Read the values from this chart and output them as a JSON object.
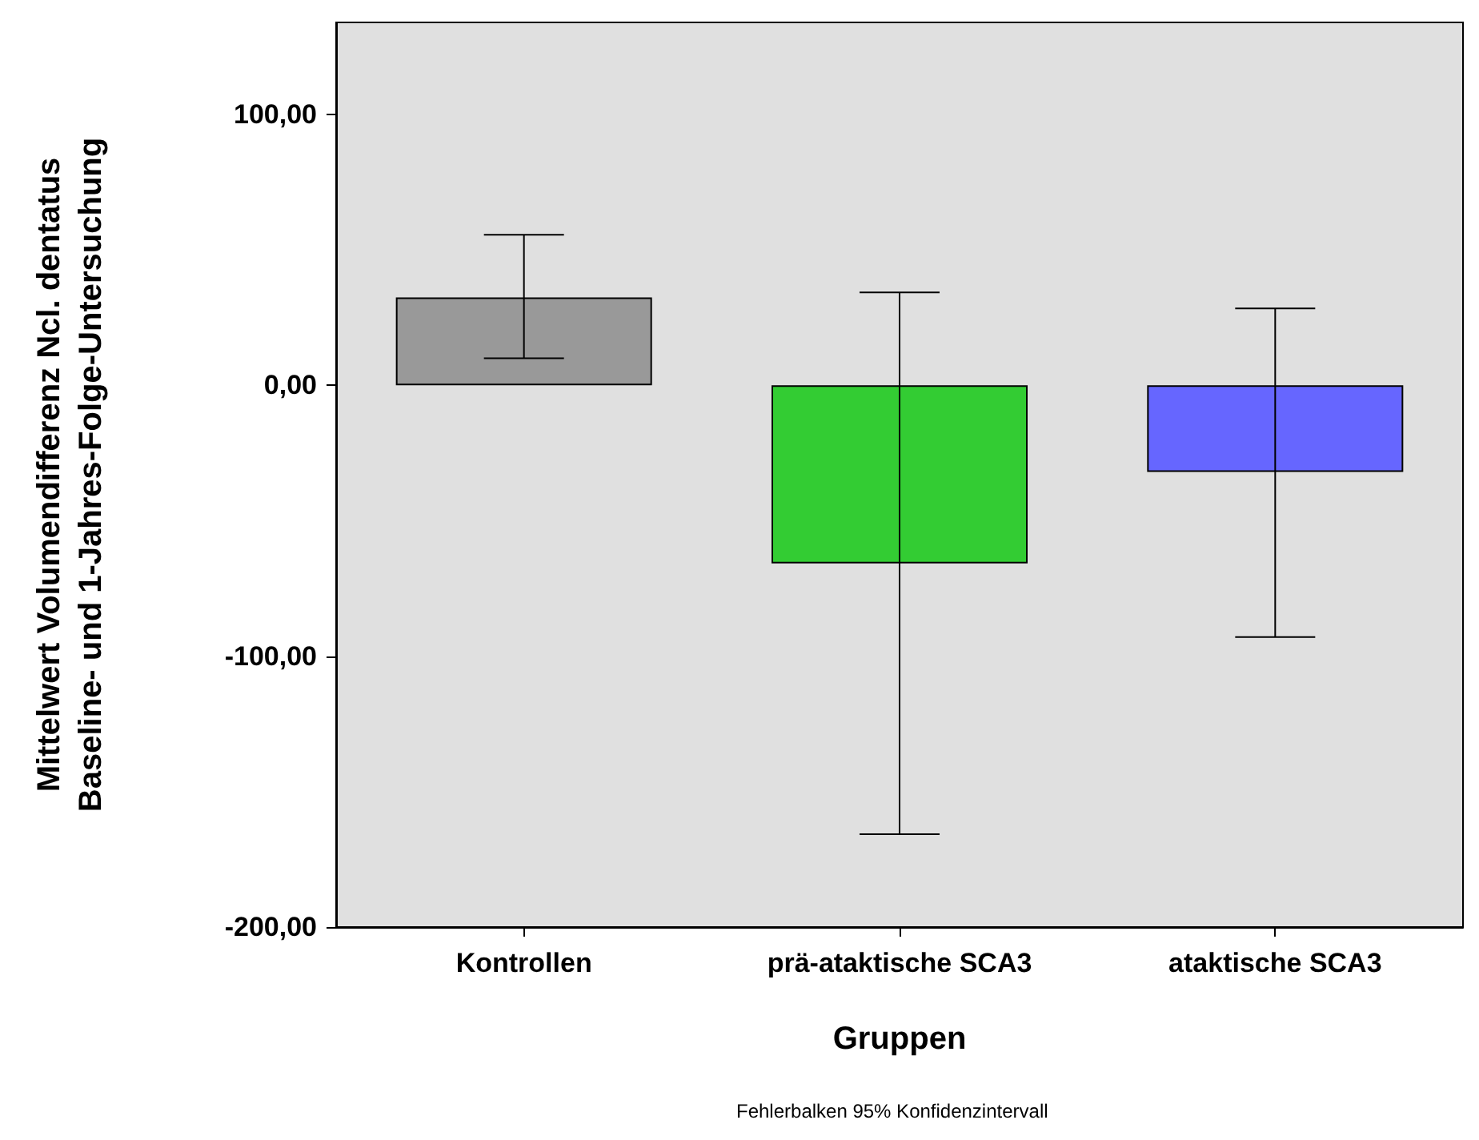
{
  "chart_data": {
    "type": "bar",
    "xlabel": "Gruppen",
    "ylabel": "Mittelwert Volumendifferenz Ncl. dentatus\nBaseline- und 1-Jahres-Folge-Untersuchung",
    "categories": [
      "Kontrollen",
      "prä-ataktische SCA3",
      "ataktische SCA3"
    ],
    "values": [
      32.5,
      -65.7,
      -32
    ],
    "colors": [
      "#999999",
      "#33cc33",
      "#6666ff"
    ],
    "errors": [
      [
        10,
        55.6
      ],
      [
        -165.7,
        34.3
      ],
      [
        -92.9,
        28.4
      ]
    ],
    "ylim": [
      -200,
      134
    ],
    "yticks": [
      {
        "value": -200,
        "label": "-200,00"
      },
      {
        "value": -100,
        "label": "-100,00"
      },
      {
        "value": 0,
        "label": "0,00"
      },
      {
        "value": 100,
        "label": "100,00"
      }
    ],
    "grid": false,
    "annotations": [
      "Fehlerbalken 95% Konfidenzintervall"
    ]
  }
}
